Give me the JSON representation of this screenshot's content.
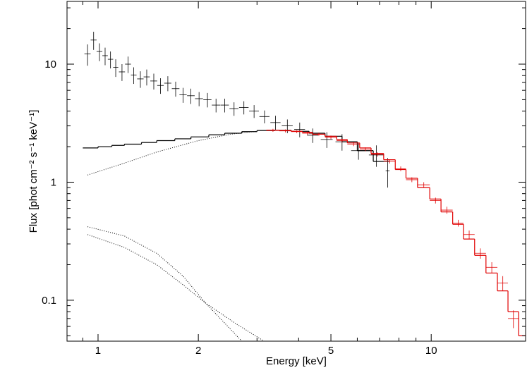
{
  "chart_data": {
    "type": "spectrum",
    "xlabel": "Energy [keV]",
    "ylabel": "Flux [phot cm⁻² s⁻¹ keV⁻¹]",
    "xscale": "log",
    "yscale": "log",
    "xlim": [
      0.807,
      19.2
    ],
    "ylim": [
      0.045,
      34
    ],
    "xticks": [
      1,
      2,
      5,
      10
    ],
    "yticks": [
      0.1,
      1,
      10
    ],
    "xminorticks": [
      0.9,
      3,
      4,
      6,
      7,
      8,
      9
    ],
    "yminorticks": [
      0.05,
      0.06,
      0.07,
      0.08,
      0.09,
      0.2,
      0.3,
      0.4,
      0.5,
      0.6,
      0.7,
      0.8,
      0.9,
      2,
      3,
      4,
      5,
      6,
      7,
      8,
      9,
      20,
      30
    ],
    "series": [
      {
        "style": "errorbar",
        "color": "#000000",
        "x": [
          0.93,
          0.97,
          1.01,
          1.05,
          1.09,
          1.13,
          1.18,
          1.23,
          1.28,
          1.34,
          1.4,
          1.47,
          1.54,
          1.62,
          1.71,
          1.8,
          1.9,
          2.01,
          2.13,
          2.26,
          2.4,
          2.56,
          2.74,
          2.94,
          3.16,
          3.41,
          3.7,
          4.03,
          4.41,
          4.86,
          5.4,
          6.05,
          6.85,
          7.4
        ],
        "xerr": [
          0.02,
          0.02,
          0.02,
          0.02,
          0.02,
          0.02,
          0.025,
          0.025,
          0.025,
          0.03,
          0.03,
          0.035,
          0.035,
          0.04,
          0.045,
          0.045,
          0.05,
          0.055,
          0.06,
          0.065,
          0.07,
          0.08,
          0.09,
          0.1,
          0.11,
          0.12,
          0.14,
          0.15,
          0.17,
          0.2,
          0.24,
          0.3,
          0.35,
          0.1
        ],
        "values": [
          12.2,
          16.0,
          12.8,
          11.8,
          11.0,
          9.4,
          8.6,
          10.0,
          8.1,
          7.5,
          7.8,
          7.2,
          6.6,
          6.9,
          6.2,
          5.5,
          5.4,
          5.1,
          5.0,
          4.5,
          4.5,
          4.2,
          4.3,
          4.0,
          3.6,
          3.2,
          3.0,
          2.8,
          2.5,
          2.3,
          2.2,
          1.85,
          1.7,
          1.25
        ],
        "yerr": [
          2.5,
          2.8,
          2.2,
          2.0,
          1.8,
          1.6,
          1.4,
          1.6,
          1.3,
          1.2,
          1.2,
          1.1,
          1.0,
          1.0,
          0.9,
          0.8,
          0.8,
          0.7,
          0.7,
          0.6,
          0.6,
          0.55,
          0.55,
          0.5,
          0.45,
          0.45,
          0.4,
          0.4,
          0.35,
          0.35,
          0.35,
          0.3,
          0.35,
          0.35
        ]
      },
      {
        "style": "step",
        "color": "#000000",
        "bins": [
          0.9,
          1.0,
          1.1,
          1.2,
          1.35,
          1.5,
          1.7,
          1.9,
          2.15,
          2.4,
          2.7,
          3.0,
          3.4,
          3.8,
          4.3,
          4.8,
          5.4,
          6.0,
          6.7,
          7.5
        ],
        "values": [
          1.95,
          2.0,
          2.05,
          2.1,
          2.17,
          2.25,
          2.33,
          2.42,
          2.52,
          2.6,
          2.68,
          2.74,
          2.75,
          2.7,
          2.6,
          2.45,
          2.2,
          1.85,
          1.5
        ]
      },
      {
        "style": "errorbar",
        "color": "#e00000",
        "x": [
          3.35,
          3.65,
          3.95,
          4.25,
          4.6,
          5.0,
          5.4,
          5.85,
          6.35,
          6.9,
          7.5,
          8.1,
          8.75,
          9.5,
          10.3,
          11.15,
          12.05,
          13.0,
          14.05,
          15.2,
          16.4,
          17.65
        ],
        "xerr": [
          0.15,
          0.15,
          0.15,
          0.15,
          0.2,
          0.2,
          0.2,
          0.25,
          0.25,
          0.3,
          0.3,
          0.3,
          0.35,
          0.4,
          0.4,
          0.45,
          0.45,
          0.5,
          0.55,
          0.6,
          0.6,
          0.65
        ],
        "values": [
          2.75,
          2.72,
          2.68,
          2.6,
          2.55,
          2.4,
          2.25,
          2.1,
          1.9,
          1.72,
          1.5,
          1.3,
          1.05,
          0.95,
          0.7,
          0.58,
          0.45,
          0.36,
          0.25,
          0.19,
          0.14,
          0.07
        ],
        "yerr": [
          0.08,
          0.08,
          0.08,
          0.08,
          0.08,
          0.08,
          0.08,
          0.08,
          0.07,
          0.07,
          0.06,
          0.06,
          0.05,
          0.05,
          0.04,
          0.04,
          0.03,
          0.03,
          0.025,
          0.02,
          0.02,
          0.012
        ]
      },
      {
        "style": "step",
        "color": "#e00000",
        "bins": [
          3.2,
          3.5,
          3.8,
          4.1,
          4.4,
          4.8,
          5.2,
          5.6,
          6.1,
          6.6,
          7.2,
          7.8,
          8.4,
          9.1,
          9.9,
          10.7,
          11.6,
          12.5,
          13.5,
          14.6,
          15.8,
          17.0,
          18.3,
          19.2
        ],
        "values": [
          2.76,
          2.74,
          2.7,
          2.65,
          2.55,
          2.45,
          2.3,
          2.15,
          1.95,
          1.75,
          1.55,
          1.28,
          1.08,
          0.9,
          0.72,
          0.56,
          0.44,
          0.33,
          0.24,
          0.17,
          0.12,
          0.08,
          0.05
        ]
      },
      {
        "style": "dotted",
        "color": "#000000",
        "x": [
          0.93,
          1.2,
          1.5,
          2,
          2.5,
          3
        ],
        "values": [
          1.15,
          1.45,
          1.8,
          2.25,
          2.55,
          2.7
        ]
      },
      {
        "style": "dotted",
        "color": "#000000",
        "x": [
          0.93,
          1.2,
          1.5,
          1.8,
          2.1,
          2.4,
          2.7
        ],
        "values": [
          0.42,
          0.35,
          0.25,
          0.16,
          0.095,
          0.064,
          0.045
        ]
      },
      {
        "style": "dotted",
        "color": "#000000",
        "x": [
          0.93,
          1.2,
          1.5,
          1.8,
          2.1,
          2.6,
          3.15
        ],
        "values": [
          0.36,
          0.28,
          0.2,
          0.135,
          0.095,
          0.063,
          0.045
        ]
      }
    ]
  }
}
